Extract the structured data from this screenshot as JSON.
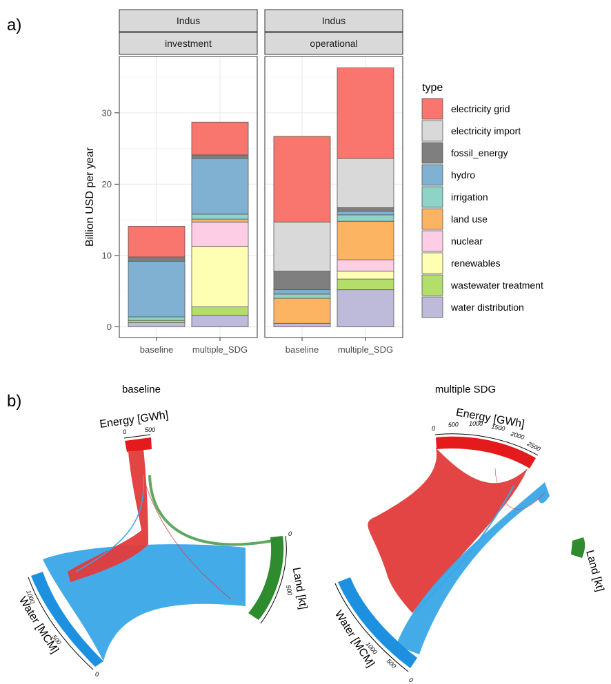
{
  "panel_a_label": "a)",
  "panel_b_label": "b)",
  "chart_data": [
    {
      "type": "bar",
      "stacked": true,
      "facet_row": "Indus",
      "facets": [
        {
          "region": "Indus",
          "name": "investment",
          "categories": [
            "baseline",
            "multiple_SDG"
          ],
          "series": [
            {
              "name": "water distribution",
              "values": [
                0.6,
                1.6
              ]
            },
            {
              "name": "wastewater treatment",
              "values": [
                0.3,
                1.2
              ]
            },
            {
              "name": "renewables",
              "values": [
                0.0,
                8.5
              ]
            },
            {
              "name": "nuclear",
              "values": [
                0.0,
                3.4
              ]
            },
            {
              "name": "land use",
              "values": [
                0.0,
                0.4
              ]
            },
            {
              "name": "irrigation",
              "values": [
                0.5,
                0.7
              ]
            },
            {
              "name": "hydro",
              "values": [
                7.8,
                7.8
              ]
            },
            {
              "name": "fossil_energy",
              "values": [
                0.6,
                0.5
              ]
            },
            {
              "name": "electricity import",
              "values": [
                0.0,
                0.0
              ]
            },
            {
              "name": "electricity grid",
              "values": [
                4.3,
                4.6
              ]
            }
          ]
        },
        {
          "region": "Indus",
          "name": "operational",
          "categories": [
            "baseline",
            "multiple_SDG"
          ],
          "series": [
            {
              "name": "water distribution",
              "values": [
                0.5,
                5.2
              ]
            },
            {
              "name": "wastewater treatment",
              "values": [
                0.0,
                1.5
              ]
            },
            {
              "name": "renewables",
              "values": [
                0.0,
                1.1
              ]
            },
            {
              "name": "nuclear",
              "values": [
                0.0,
                1.6
              ]
            },
            {
              "name": "land use",
              "values": [
                3.5,
                5.4
              ]
            },
            {
              "name": "irrigation",
              "values": [
                0.6,
                0.9
              ]
            },
            {
              "name": "hydro",
              "values": [
                0.6,
                0.5
              ]
            },
            {
              "name": "fossil_energy",
              "values": [
                2.6,
                0.5
              ]
            },
            {
              "name": "electricity import",
              "values": [
                6.9,
                6.9
              ]
            },
            {
              "name": "electricity grid",
              "values": [
                12.0,
                12.7
              ]
            }
          ]
        }
      ],
      "ylabel": "Billion USD per year",
      "ylim": [
        0,
        38
      ],
      "yticks": [
        0,
        10,
        20,
        30
      ],
      "grid": true,
      "legend": {
        "title": "type",
        "position": "right",
        "entries": [
          {
            "name": "electricity grid",
            "color": "#F8766D"
          },
          {
            "name": "electricity import",
            "color": "#D9D9D9"
          },
          {
            "name": "fossil_energy",
            "color": "#7F7F7F"
          },
          {
            "name": "hydro",
            "color": "#80B1D3"
          },
          {
            "name": "irrigation",
            "color": "#8DD3C7"
          },
          {
            "name": "land use",
            "color": "#FDB462"
          },
          {
            "name": "nuclear",
            "color": "#FCCDE5"
          },
          {
            "name": "renewables",
            "color": "#FFFFB3"
          },
          {
            "name": "wastewater treatment",
            "color": "#B3DE69"
          },
          {
            "name": "water distribution",
            "color": "#BEBADA"
          }
        ]
      }
    },
    {
      "type": "chord",
      "title": "baseline",
      "sectors": [
        {
          "name": "Energy [GWh]",
          "color": "#E41A1C",
          "ticks": [
            "0",
            "500"
          ]
        },
        {
          "name": "Land [kt]",
          "color": "#2E8B2E",
          "ticks": [
            "0",
            "500"
          ]
        },
        {
          "name": "Water [MCM]",
          "color": "#1E90E0",
          "ticks": [
            "0",
            "500",
            "1000"
          ]
        }
      ]
    },
    {
      "type": "chord",
      "title": "multiple SDG",
      "sectors": [
        {
          "name": "Energy [GWh]",
          "color": "#E41A1C",
          "ticks": [
            "0",
            "500",
            "1000",
            "1500",
            "2000",
            "2500"
          ]
        },
        {
          "name": "Land [kt]",
          "color": "#2E8B2E",
          "ticks": []
        },
        {
          "name": "Water [MCM]",
          "color": "#1E90E0",
          "ticks": [
            "0",
            "500",
            "1000"
          ]
        }
      ]
    }
  ]
}
